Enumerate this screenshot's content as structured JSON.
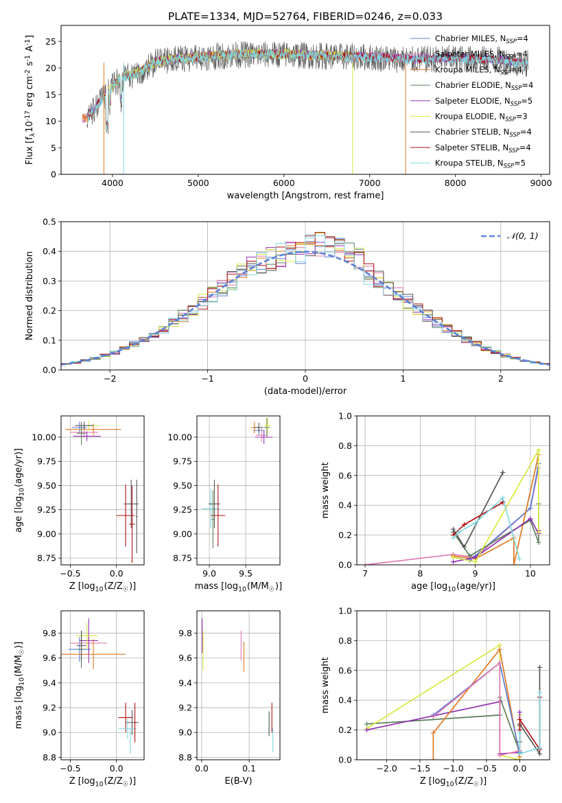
{
  "figure_title": "PLATE=1334, MJD=52764, FIBERID=0246, z=0.033",
  "colors": {
    "chabrier_miles": "#5b7fd6",
    "salpeter_miles": "#e078b0",
    "kroupa_miles": "#e07820",
    "chabrier_elodie": "#5a7f5a",
    "salpeter_elodie": "#9030b0",
    "kroupa_elodie": "#d8e840",
    "chabrier_stelib": "#555555",
    "salpeter_stelib": "#b01010",
    "kroupa_stelib": "#80d8e0",
    "gaussian": "#5b7fd6",
    "grid": "#b0b0b0"
  },
  "chart_data": [
    {
      "id": "spectrum",
      "type": "line",
      "xlabel": "wavelength [Angstrom, rest frame]",
      "ylabel": "Flux [f$_\\lambda$10$^{-17}$ erg cm$^{-2}$ s$^{-1}$ A$^{-1}$]",
      "xlim": [
        3400,
        9100
      ],
      "ylim": [
        0,
        28
      ],
      "xticks": [
        4000,
        5000,
        6000,
        7000,
        8000,
        9000
      ],
      "yticks": [
        0,
        5,
        10,
        15,
        20,
        25
      ],
      "grid": false,
      "legend_position": "upper-right",
      "legend": [
        {
          "key": "chabrier_miles",
          "label": "Chabrier MILES, N",
          "sub": "SSP",
          "tail": "=4"
        },
        {
          "key": "salpeter_miles",
          "label": "Salpeter MILES, N",
          "sub": "SSP",
          "tail": "=4"
        },
        {
          "key": "kroupa_miles",
          "label": "Kroupa MILES, N",
          "sub": "SSP",
          "tail": "=4"
        },
        {
          "key": "chabrier_elodie",
          "label": "Chabrier ELODIE, N",
          "sub": "SSP",
          "tail": "=4"
        },
        {
          "key": "salpeter_elodie",
          "label": "Salpeter ELODIE, N",
          "sub": "SSP",
          "tail": "=5"
        },
        {
          "key": "kroupa_elodie",
          "label": "Kroupa ELODIE, N",
          "sub": "SSP",
          "tail": "=3"
        },
        {
          "key": "chabrier_stelib",
          "label": "Chabrier STELIB, N",
          "sub": "SSP",
          "tail": "=4"
        },
        {
          "key": "salpeter_stelib",
          "label": "Salpeter STELIB, N",
          "sub": "SSP",
          "tail": "=4"
        },
        {
          "key": "kroupa_stelib",
          "label": "Kroupa STELIB, N",
          "sub": "SSP",
          "tail": "=5"
        }
      ],
      "data_envelope": {
        "x": [
          3700,
          3800,
          3900,
          4000,
          4100,
          4200,
          4300,
          4400,
          4500,
          4700,
          5000,
          5500,
          6000,
          6500,
          7000,
          7500,
          8000,
          8500,
          8800
        ],
        "y": [
          10.5,
          12.5,
          14.5,
          16.5,
          18,
          18.5,
          19,
          20,
          21,
          21.5,
          22,
          22.5,
          22.5,
          22.2,
          22,
          21.5,
          21.8,
          21.5,
          20.8
        ]
      },
      "model_extents": {
        "miles": [
          3650,
          7420
        ],
        "elodie": [
          3900,
          6800
        ],
        "stelib": [
          3700,
          8850
        ],
        "data": [
          3700,
          8850
        ]
      }
    },
    {
      "id": "residuals",
      "type": "step",
      "xlabel": "(data-model)/error",
      "ylabel": "Normed distribution",
      "xlim": [
        -2.5,
        2.5
      ],
      "ylim": [
        0,
        0.5
      ],
      "xticks": [
        -2,
        -1,
        0,
        1,
        2
      ],
      "xtick_labels": [
        "−2",
        "−1",
        "0",
        "1",
        "2"
      ],
      "yticks": [
        0,
        0.1,
        0.2,
        0.3,
        0.4,
        0.5
      ],
      "ytick_labels": [
        "0.0",
        "0.1",
        "0.2",
        "0.3",
        "0.4",
        "0.5"
      ],
      "grid": true,
      "legend_position": "upper-right",
      "gaussian_label": "𝒩(0, 1)",
      "bin_width": 0.1
    },
    {
      "id": "age_vs_Z",
      "type": "errorbar",
      "xlabel": "Z [log$_{10}$($Z/Z_\\odot$)]",
      "ylabel": "age  [log$_{10}$($age/yr$)]",
      "xlim": [
        -0.6,
        0.3
      ],
      "ylim": [
        8.68,
        10.22
      ],
      "xticks": [
        -0.5,
        0.0
      ],
      "xtick_labels": [
        "−0.5",
        "0.0"
      ],
      "yticks": [
        8.75,
        9.0,
        9.25,
        9.5,
        9.75,
        10.0
      ],
      "ytick_labels": [
        "8.75",
        "9.00",
        "9.25",
        "9.50",
        "9.75",
        "10.00"
      ],
      "grid": true,
      "points": [
        {
          "c": "chabrier_miles",
          "x": -0.4,
          "xe": 0.08,
          "y": 10.1,
          "ye": 0.06
        },
        {
          "c": "salpeter_miles",
          "x": -0.35,
          "xe": 0.15,
          "y": 10.05,
          "ye": 0.05
        },
        {
          "c": "kroupa_miles",
          "x": -0.25,
          "xe": 0.3,
          "y": 10.08,
          "ye": 0.06
        },
        {
          "c": "chabrier_elodie",
          "x": -0.38,
          "xe": 0.05,
          "y": 10.04,
          "ye": 0.12
        },
        {
          "c": "salpeter_elodie",
          "x": -0.32,
          "xe": 0.15,
          "y": 10.01,
          "ye": 0.05
        },
        {
          "c": "kroupa_elodie",
          "x": -0.3,
          "xe": 0.12,
          "y": 10.12,
          "ye": 0.05
        },
        {
          "c": "chabrier_stelib",
          "x": -0.35,
          "xe": 0.1,
          "y": 10.12,
          "ye": 0.04
        },
        {
          "c": "salpeter_stelib",
          "x": 0.1,
          "xe": 0.1,
          "y": 9.19,
          "ye": 0.32
        },
        {
          "c": "chabrier_stelib",
          "x": 0.16,
          "xe": 0.08,
          "y": 9.31,
          "ye": 0.25
        },
        {
          "c": "salpeter_stelib",
          "x": 0.17,
          "xe": 0.03,
          "y": 9.1,
          "ye": 0.4
        },
        {
          "c": "chabrier_stelib",
          "x": 0.22,
          "xe": 0.01,
          "y": 9.18,
          "ye": 0.38
        }
      ]
    },
    {
      "id": "age_vs_mass",
      "type": "errorbar",
      "xlabel": "mass [log$_{10}$($M/M_\\odot$)]",
      "ylabel": "",
      "xlim": [
        8.83,
        9.97
      ],
      "ylim": [
        8.68,
        10.22
      ],
      "xticks": [
        9.0,
        9.5
      ],
      "xtick_labels": [
        "9.0",
        "9.5"
      ],
      "yticks": [
        8.75,
        9.0,
        9.25,
        9.5,
        9.75,
        10.0
      ],
      "ytick_labels": [
        "8.75",
        "9.00",
        "9.25",
        "9.50",
        "9.75",
        "10.00"
      ],
      "grid": true,
      "points": [
        {
          "c": "chabrier_miles",
          "x": 9.68,
          "xe": 0.08,
          "y": 10.07,
          "ye": 0.05
        },
        {
          "c": "salpeter_miles",
          "x": 9.72,
          "xe": 0.08,
          "y": 10.02,
          "ye": 0.07
        },
        {
          "c": "kroupa_miles",
          "x": 9.62,
          "xe": 0.05,
          "y": 10.1,
          "ye": 0.06
        },
        {
          "c": "chabrier_elodie",
          "x": 9.79,
          "xe": 0.04,
          "y": 10.1,
          "ye": 0.1
        },
        {
          "c": "salpeter_elodie",
          "x": 9.75,
          "xe": 0.12,
          "y": 10.0,
          "ye": 0.07
        },
        {
          "c": "kroupa_elodie",
          "x": 9.8,
          "xe": 0.05,
          "y": 10.12,
          "ye": 0.08
        },
        {
          "c": "chabrier_stelib",
          "x": 9.68,
          "xe": 0.06,
          "y": 10.1,
          "ye": 0.05
        },
        {
          "c": "kroupa_stelib",
          "x": 9.02,
          "xe": 0.12,
          "y": 9.26,
          "ye": 0.2
        },
        {
          "c": "chabrier_stelib",
          "x": 9.07,
          "xe": 0.08,
          "y": 9.31,
          "ye": 0.25
        },
        {
          "c": "salpeter_stelib",
          "x": 9.12,
          "xe": 0.1,
          "y": 9.19,
          "ye": 0.32
        },
        {
          "c": "chabrier_elodie",
          "x": 9.05,
          "xe": 0.02,
          "y": 9.15,
          "ye": 0.3
        }
      ]
    },
    {
      "id": "weight_vs_age",
      "type": "line",
      "xlabel": "age  [log$_{10}$($age/yr$)]",
      "ylabel": "mass weight",
      "xlim": [
        6.85,
        10.35
      ],
      "ylim": [
        0,
        1.0
      ],
      "xticks": [
        7,
        8,
        9,
        10
      ],
      "xtick_labels": [
        "7",
        "8",
        "9",
        "10"
      ],
      "yticks": [
        0,
        0.2,
        0.4,
        0.6,
        0.8,
        1.0
      ],
      "ytick_labels": [
        "0.0",
        "0.2",
        "0.4",
        "0.6",
        "0.8",
        "1.0"
      ],
      "grid": true,
      "series": [
        {
          "c": "salpeter_miles",
          "x": [
            7.0,
            8.6,
            9.0,
            10.0,
            10.15
          ],
          "y": [
            0.0,
            0.07,
            0.05,
            0.38,
            0.65
          ]
        },
        {
          "c": "chabrier_miles",
          "x": [
            8.6,
            8.9,
            9.0,
            10.0,
            10.15
          ],
          "y": [
            0.05,
            0.03,
            0.06,
            0.38,
            0.68
          ]
        },
        {
          "c": "kroupa_miles",
          "x": [
            8.6,
            9.0,
            9.7,
            9.7,
            10.15
          ],
          "y": [
            0.06,
            0.04,
            0.18,
            0.0,
            0.74
          ]
        },
        {
          "c": "chabrier_elodie",
          "x": [
            8.6,
            8.9,
            10.0,
            10.15,
            10.15
          ],
          "y": [
            0.22,
            0.06,
            0.3,
            0.15,
            0.41
          ]
        },
        {
          "c": "salpeter_elodie",
          "x": [
            8.6,
            9.0,
            10.0,
            10.15,
            10.15
          ],
          "y": [
            0.02,
            0.05,
            0.31,
            0.21,
            0.23
          ]
        },
        {
          "c": "kroupa_elodie",
          "x": [
            8.6,
            9.0,
            10.15,
            10.15
          ],
          "y": [
            0.05,
            0.02,
            0.77,
            0.22
          ]
        },
        {
          "c": "chabrier_stelib",
          "x": [
            8.6,
            8.8,
            9.5,
            9.5
          ],
          "y": [
            0.24,
            0.12,
            0.62,
            0.62
          ]
        },
        {
          "c": "salpeter_stelib",
          "x": [
            8.6,
            8.8,
            9.5,
            9.5
          ],
          "y": [
            0.2,
            0.27,
            0.42,
            0.42
          ]
        },
        {
          "c": "kroupa_stelib",
          "x": [
            8.6,
            8.7,
            9.0,
            9.5,
            9.8
          ],
          "y": [
            0.18,
            0.22,
            0.28,
            0.45,
            0.04
          ]
        }
      ]
    },
    {
      "id": "mass_vs_Z",
      "type": "errorbar",
      "xlabel": "Z [log$_{10}$($Z/Z_\\odot$)]",
      "ylabel": "mass [log$_{10}$($M/M_\\odot$)]",
      "xlim": [
        -0.6,
        0.3
      ],
      "ylim": [
        8.78,
        9.98
      ],
      "xticks": [
        -0.5,
        0.0
      ],
      "xtick_labels": [
        "−0.5",
        "0.0"
      ],
      "yticks": [
        8.8,
        9.0,
        9.2,
        9.4,
        9.6,
        9.8
      ],
      "ytick_labels": [
        "8.8",
        "9.0",
        "9.2",
        "9.4",
        "9.6",
        "9.8"
      ],
      "grid": true,
      "points": [
        {
          "c": "chabrier_miles",
          "x": -0.4,
          "xe": 0.12,
          "y": 9.67,
          "ye": 0.1
        },
        {
          "c": "salpeter_miles",
          "x": -0.3,
          "xe": 0.2,
          "y": 9.72,
          "ye": 0.08
        },
        {
          "c": "kroupa_miles",
          "x": -0.25,
          "xe": 0.35,
          "y": 9.63,
          "ye": 0.12
        },
        {
          "c": "chabrier_elodie",
          "x": -0.38,
          "xe": 0.05,
          "y": 9.67,
          "ye": 0.15
        },
        {
          "c": "salpeter_elodie",
          "x": -0.3,
          "xe": 0.1,
          "y": 9.74,
          "ye": 0.18
        },
        {
          "c": "kroupa_elodie",
          "x": -0.32,
          "xe": 0.12,
          "y": 9.78,
          "ye": 0.1
        },
        {
          "c": "chabrier_stelib",
          "x": -0.38,
          "xe": 0.05,
          "y": 9.7,
          "ye": 0.12
        },
        {
          "c": "salpeter_stelib",
          "x": 0.1,
          "xe": 0.08,
          "y": 9.12,
          "ye": 0.12
        },
        {
          "c": "chabrier_stelib",
          "x": 0.17,
          "xe": 0.07,
          "y": 9.08,
          "ye": 0.1
        },
        {
          "c": "kroupa_stelib",
          "x": 0.12,
          "xe": 0.1,
          "y": 9.03,
          "ye": 0.08
        },
        {
          "c": "salpeter_stelib",
          "x": 0.2,
          "xe": 0.01,
          "y": 9.08,
          "ye": 0.16
        },
        {
          "c": "kroupa_stelib",
          "x": 0.15,
          "xe": 0.01,
          "y": 8.93,
          "ye": 0.1
        }
      ]
    },
    {
      "id": "mass_vs_ebv",
      "type": "errorbar",
      "xlabel": "E(B-V)",
      "ylabel": "",
      "xlim": [
        -0.01,
        0.165
      ],
      "ylim": [
        8.78,
        9.98
      ],
      "xticks": [
        0.0,
        0.1
      ],
      "xtick_labels": [
        "0.0",
        "0.1"
      ],
      "yticks": [
        8.8,
        9.0,
        9.2,
        9.4,
        9.6,
        9.8
      ],
      "ytick_labels": [
        "8.8",
        "9.0",
        "9.2",
        "9.4",
        "9.6",
        "9.8"
      ],
      "grid": true,
      "points": [
        {
          "c": "salpeter_elodie",
          "x": 0.001,
          "xe": 0,
          "y": 9.78,
          "ye": 0.14
        },
        {
          "c": "kroupa_elodie",
          "x": 0.003,
          "xe": 0,
          "y": 9.66,
          "ye": 0.16
        },
        {
          "c": "salpeter_miles",
          "x": 0.083,
          "xe": 0,
          "y": 9.7,
          "ye": 0.12
        },
        {
          "c": "kroupa_miles",
          "x": 0.089,
          "xe": 0,
          "y": 9.61,
          "ye": 0.12
        },
        {
          "c": "chabrier_stelib",
          "x": 0.142,
          "xe": 0,
          "y": 9.07,
          "ye": 0.1
        },
        {
          "c": "salpeter_stelib",
          "x": 0.148,
          "xe": 0,
          "y": 9.12,
          "ye": 0.12
        },
        {
          "c": "kroupa_stelib",
          "x": 0.15,
          "xe": 0,
          "y": 8.94,
          "ye": 0.1
        }
      ]
    },
    {
      "id": "weight_vs_Z",
      "type": "line",
      "xlabel": "Z [log$_{10}$($Z/Z_\\odot$)]",
      "ylabel": "mass weight",
      "xlim": [
        -2.45,
        0.45
      ],
      "ylim": [
        0,
        1.0
      ],
      "xticks": [
        -2.0,
        -1.5,
        -1.0,
        -0.5,
        0.0
      ],
      "xtick_labels": [
        "−2.0",
        "−1.5",
        "−1.0",
        "−0.5",
        "0.0"
      ],
      "yticks": [
        0,
        0.2,
        0.4,
        0.6,
        0.8,
        1.0
      ],
      "ytick_labels": [
        "0.0",
        "0.2",
        "0.4",
        "0.6",
        "0.8",
        "1.0"
      ],
      "grid": true,
      "series": [
        {
          "c": "chabrier_elodie",
          "x": [
            -2.3,
            -0.3,
            -0.3,
            0.0,
            0.0
          ],
          "y": [
            0.24,
            0.3,
            0.42,
            0.05,
            0.23
          ]
        },
        {
          "c": "kroupa_elodie",
          "x": [
            -2.3,
            -0.3,
            -0.3,
            0.0,
            0.0
          ],
          "y": [
            0.21,
            0.77,
            0.03,
            0.0,
            0.3
          ]
        },
        {
          "c": "salpeter_elodie",
          "x": [
            -2.3,
            -0.3,
            -0.3,
            0.0,
            0.0
          ],
          "y": [
            0.2,
            0.39,
            0.04,
            0.05,
            0.32
          ]
        },
        {
          "c": "kroupa_miles",
          "x": [
            -1.3,
            -1.3,
            -0.3,
            0.0
          ],
          "y": [
            0.0,
            0.18,
            0.74,
            0.02
          ]
        },
        {
          "c": "chabrier_miles",
          "x": [
            -1.3,
            -0.3,
            0.0,
            0.0
          ],
          "y": [
            0.3,
            0.65,
            0.04,
            0.05
          ]
        },
        {
          "c": "salpeter_miles",
          "x": [
            -1.3,
            -0.3,
            -0.3,
            0.0
          ],
          "y": [
            0.29,
            0.65,
            0.03,
            0.06
          ]
        },
        {
          "c": "chabrier_stelib",
          "x": [
            0.0,
            0.0,
            0.3,
            0.3,
            0.3
          ],
          "y": [
            0.12,
            0.24,
            0.04,
            0.62,
            0.62
          ]
        },
        {
          "c": "salpeter_stelib",
          "x": [
            0.0,
            0.0,
            0.3,
            0.3
          ],
          "y": [
            0.2,
            0.27,
            0.07,
            0.42
          ]
        },
        {
          "c": "kroupa_stelib",
          "x": [
            0.0,
            0.0,
            0.3,
            0.3
          ],
          "y": [
            0.18,
            0.04,
            0.08,
            0.45
          ]
        }
      ]
    }
  ]
}
